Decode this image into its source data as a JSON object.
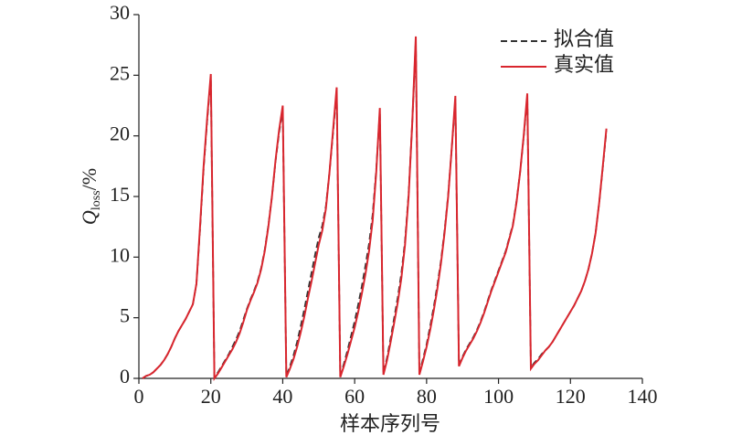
{
  "chart_data": {
    "type": "line",
    "x_label": "样本序列号",
    "y_label": "Q",
    "y_label_sub": "loss",
    "y_label_suffix": "/%",
    "x": [
      1,
      2,
      3,
      4,
      5,
      6,
      7,
      8,
      9,
      10,
      11,
      12,
      13,
      14,
      15,
      16,
      17,
      18,
      19,
      20,
      21,
      22,
      23,
      24,
      25,
      26,
      27,
      28,
      29,
      30,
      31,
      32,
      33,
      34,
      35,
      36,
      37,
      38,
      39,
      40,
      41,
      42,
      43,
      44,
      45,
      46,
      47,
      48,
      49,
      50,
      51,
      52,
      53,
      54,
      55,
      56,
      57,
      58,
      59,
      60,
      61,
      62,
      63,
      64,
      65,
      66,
      67,
      68,
      69,
      70,
      71,
      72,
      73,
      74,
      75,
      76,
      77,
      78,
      79,
      80,
      81,
      82,
      83,
      84,
      85,
      86,
      87,
      88,
      89,
      90,
      91,
      92,
      93,
      94,
      95,
      96,
      97,
      98,
      99,
      100,
      101,
      102,
      103,
      104,
      105,
      106,
      107,
      108,
      109,
      110,
      111,
      112,
      113,
      114,
      115,
      116,
      117,
      118,
      119,
      120,
      121,
      122,
      123,
      124,
      125,
      126,
      127,
      128,
      129,
      130
    ],
    "series": [
      {
        "name": "拟合值",
        "color": "#333333",
        "dash": true,
        "values": [
          0.0,
          0.2,
          0.3,
          0.5,
          0.8,
          1.1,
          1.5,
          2.0,
          2.6,
          3.3,
          3.9,
          4.4,
          4.9,
          5.5,
          6.1,
          7.8,
          12.3,
          17.3,
          21.3,
          24.8,
          0.1,
          0.5,
          1.0,
          1.5,
          2.0,
          2.6,
          3.2,
          3.9,
          4.8,
          5.7,
          6.5,
          7.2,
          8.0,
          9.1,
          10.6,
          12.6,
          15.0,
          17.9,
          20.3,
          22.2,
          0.2,
          1.0,
          1.9,
          3.0,
          4.3,
          5.7,
          7.2,
          8.7,
          10.2,
          11.6,
          12.6,
          14.2,
          17.0,
          20.3,
          23.7,
          0.2,
          1.2,
          2.3,
          3.5,
          4.7,
          6.1,
          7.6,
          9.3,
          11.1,
          13.5,
          17.2,
          22.0,
          0.4,
          1.7,
          3.3,
          5.0,
          6.7,
          8.7,
          11.3,
          15.2,
          21.0,
          27.8,
          0.4,
          1.6,
          2.8,
          4.3,
          5.9,
          7.7,
          9.7,
          12.2,
          15.1,
          19.0,
          23.0,
          1.1,
          1.8,
          2.4,
          2.9,
          3.4,
          4.0,
          4.7,
          5.5,
          6.4,
          7.3,
          8.1,
          8.9,
          9.7,
          10.5,
          11.6,
          12.7,
          14.6,
          17.0,
          19.9,
          23.2,
          0.9,
          1.3,
          1.6,
          2.0,
          2.3,
          2.6,
          3.0,
          3.5,
          4.0,
          4.5,
          5.0,
          5.5,
          6.0,
          6.6,
          7.2,
          8.0,
          9.0,
          10.3,
          12.0,
          14.5,
          17.4,
          20.4
        ]
      },
      {
        "name": "真实值",
        "color": "#d9262e",
        "dash": false,
        "values": [
          0.0,
          0.2,
          0.3,
          0.5,
          0.8,
          1.1,
          1.5,
          2.0,
          2.6,
          3.3,
          3.9,
          4.4,
          4.9,
          5.5,
          6.1,
          7.8,
          12.5,
          17.5,
          21.5,
          25.1,
          0.0,
          0.4,
          0.9,
          1.4,
          1.9,
          2.4,
          3.0,
          3.7,
          4.6,
          5.6,
          6.4,
          7.1,
          7.9,
          9.0,
          10.5,
          12.5,
          15.0,
          18.0,
          20.5,
          22.5,
          0.1,
          0.8,
          1.6,
          2.6,
          3.8,
          5.1,
          6.6,
          8.0,
          9.5,
          11.0,
          12.2,
          14.0,
          17.0,
          20.5,
          24.0,
          0.1,
          1.0,
          2.0,
          3.1,
          4.2,
          5.5,
          7.0,
          8.6,
          10.5,
          13.0,
          17.0,
          22.3,
          0.3,
          1.5,
          3.0,
          4.6,
          6.3,
          8.3,
          11.0,
          15.0,
          21.0,
          28.2,
          0.3,
          1.4,
          2.6,
          4.0,
          5.6,
          7.4,
          9.5,
          12.0,
          15.0,
          19.0,
          23.3,
          1.0,
          1.7,
          2.3,
          2.8,
          3.3,
          3.9,
          4.6,
          5.4,
          6.3,
          7.2,
          8.0,
          8.8,
          9.6,
          10.4,
          11.5,
          12.6,
          14.5,
          17.0,
          20.0,
          23.5,
          0.8,
          1.2,
          1.5,
          1.9,
          2.3,
          2.6,
          3.0,
          3.5,
          4.0,
          4.5,
          5.0,
          5.5,
          6.0,
          6.6,
          7.2,
          8.0,
          9.0,
          10.3,
          12.0,
          14.5,
          17.5,
          20.6
        ]
      }
    ],
    "xlim": [
      0,
      140
    ],
    "xticks": [
      0,
      20,
      40,
      60,
      80,
      100,
      120,
      140
    ],
    "ylim": [
      0,
      30
    ],
    "yticks": [
      0,
      5,
      10,
      15,
      20,
      25,
      30
    ],
    "legend": "upper right",
    "grid": false
  }
}
